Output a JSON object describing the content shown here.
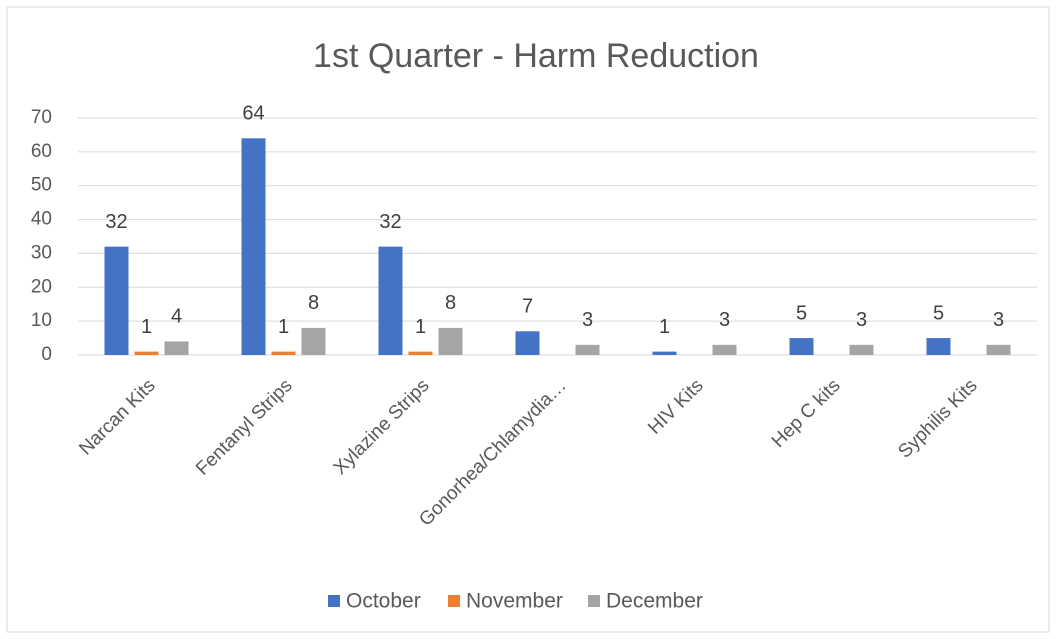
{
  "chart_data": {
    "type": "bar",
    "title": "1st Quarter - Harm Reduction",
    "categories": [
      "Narcan Kits",
      "Fentanyl Strips",
      "Xylazine Strips",
      "Gonorhea/Chlamydia…",
      "HIV Kits",
      "Hep C kits",
      "Syphilis Kits"
    ],
    "series": [
      {
        "name": "October",
        "color": "#4472c4",
        "values": [
          32,
          64,
          32,
          7,
          1,
          5,
          5
        ]
      },
      {
        "name": "November",
        "color": "#ed7d31",
        "values": [
          1,
          1,
          1,
          null,
          null,
          null,
          null
        ]
      },
      {
        "name": "December",
        "color": "#a5a5a5",
        "values": [
          4,
          8,
          8,
          3,
          3,
          3,
          3
        ]
      }
    ],
    "ylim": [
      0,
      70
    ],
    "yticks": [
      0,
      10,
      20,
      30,
      40,
      50,
      60,
      70
    ],
    "grid": true,
    "legend": "bottom"
  }
}
